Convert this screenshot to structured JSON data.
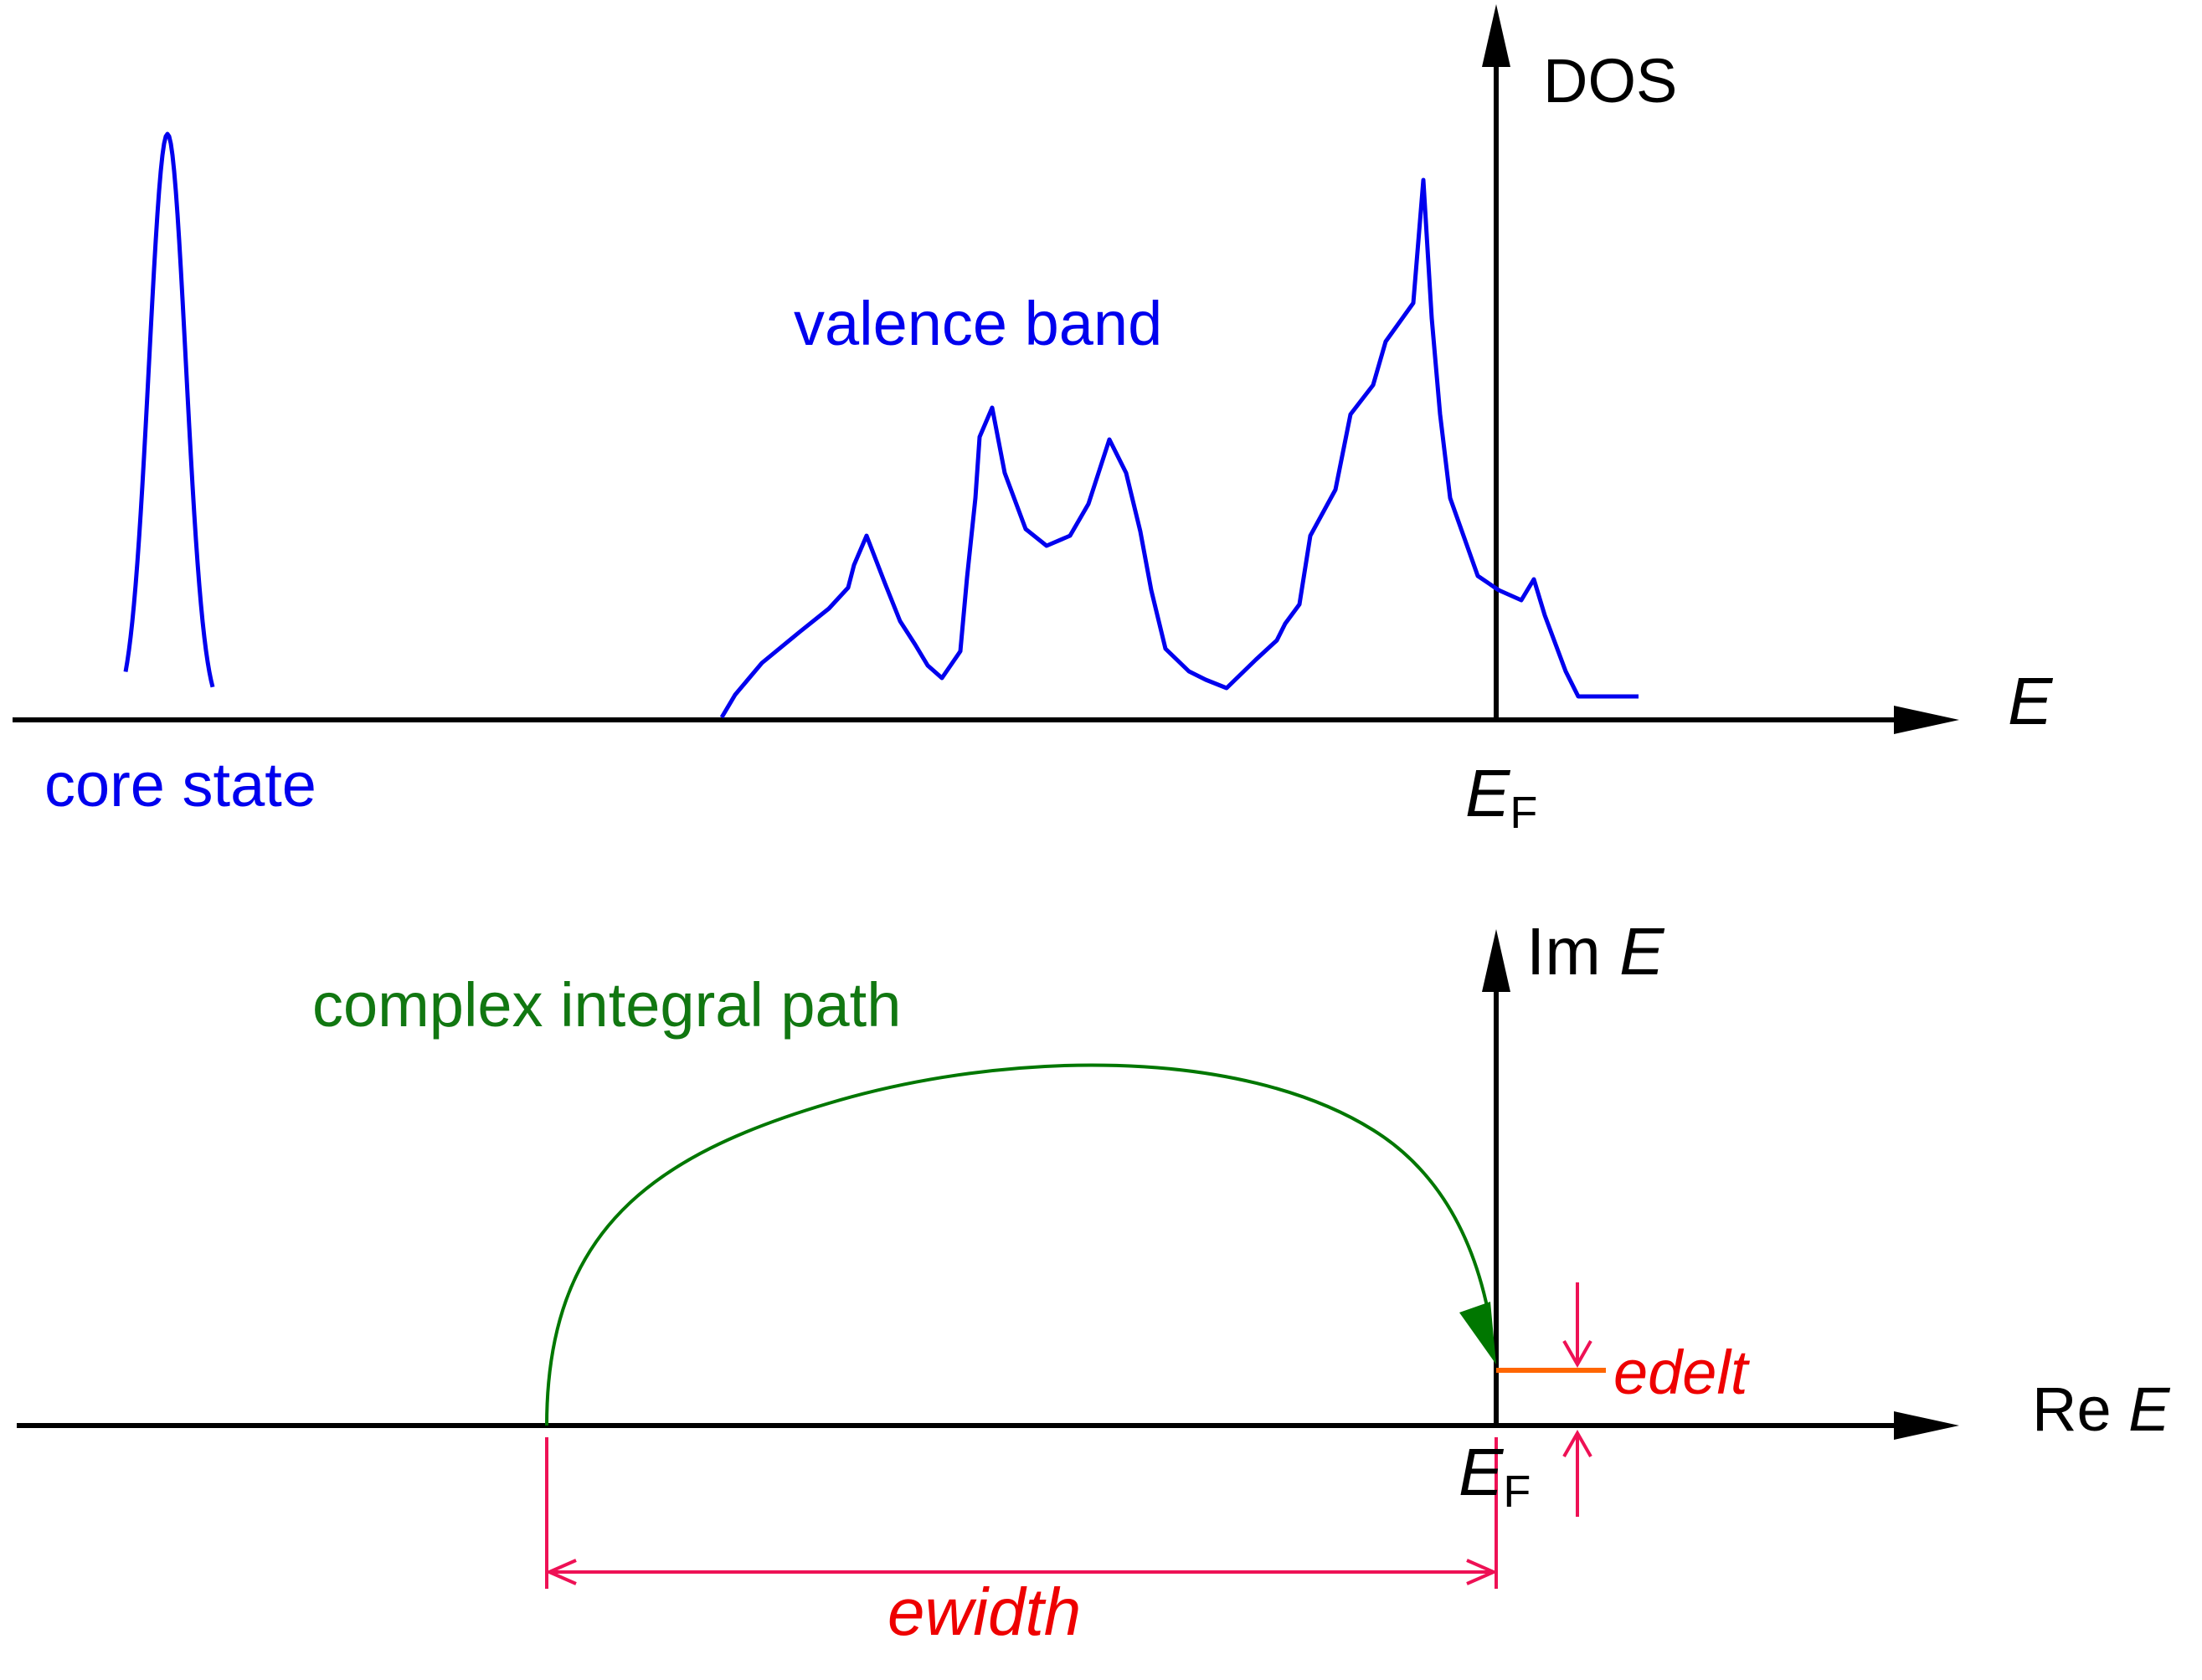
{
  "upper_panel": {
    "y_axis_label": "DOS",
    "x_axis_label": "E",
    "fermi_label_main": "E",
    "fermi_label_sub": "F",
    "core_label": "core state",
    "valence_label": "valence band"
  },
  "lower_panel": {
    "im_label_prefix": "Im ",
    "im_label_var": "E",
    "re_label_prefix": "Re ",
    "re_label_var": "E",
    "fermi_label_main": "E",
    "fermi_label_sub": "F",
    "path_label": "complex integral path",
    "ewidth_label": "ewidth",
    "edelt_label": "edelt"
  },
  "colors": {
    "axis": "#000000",
    "dos_curve": "#0000ee",
    "dos_text": "#0000ee",
    "path": "#007700",
    "path_text": "#117711",
    "dimension": "#ee1155",
    "edelt_line": "#ff6600",
    "param_text": "#ee0000"
  }
}
